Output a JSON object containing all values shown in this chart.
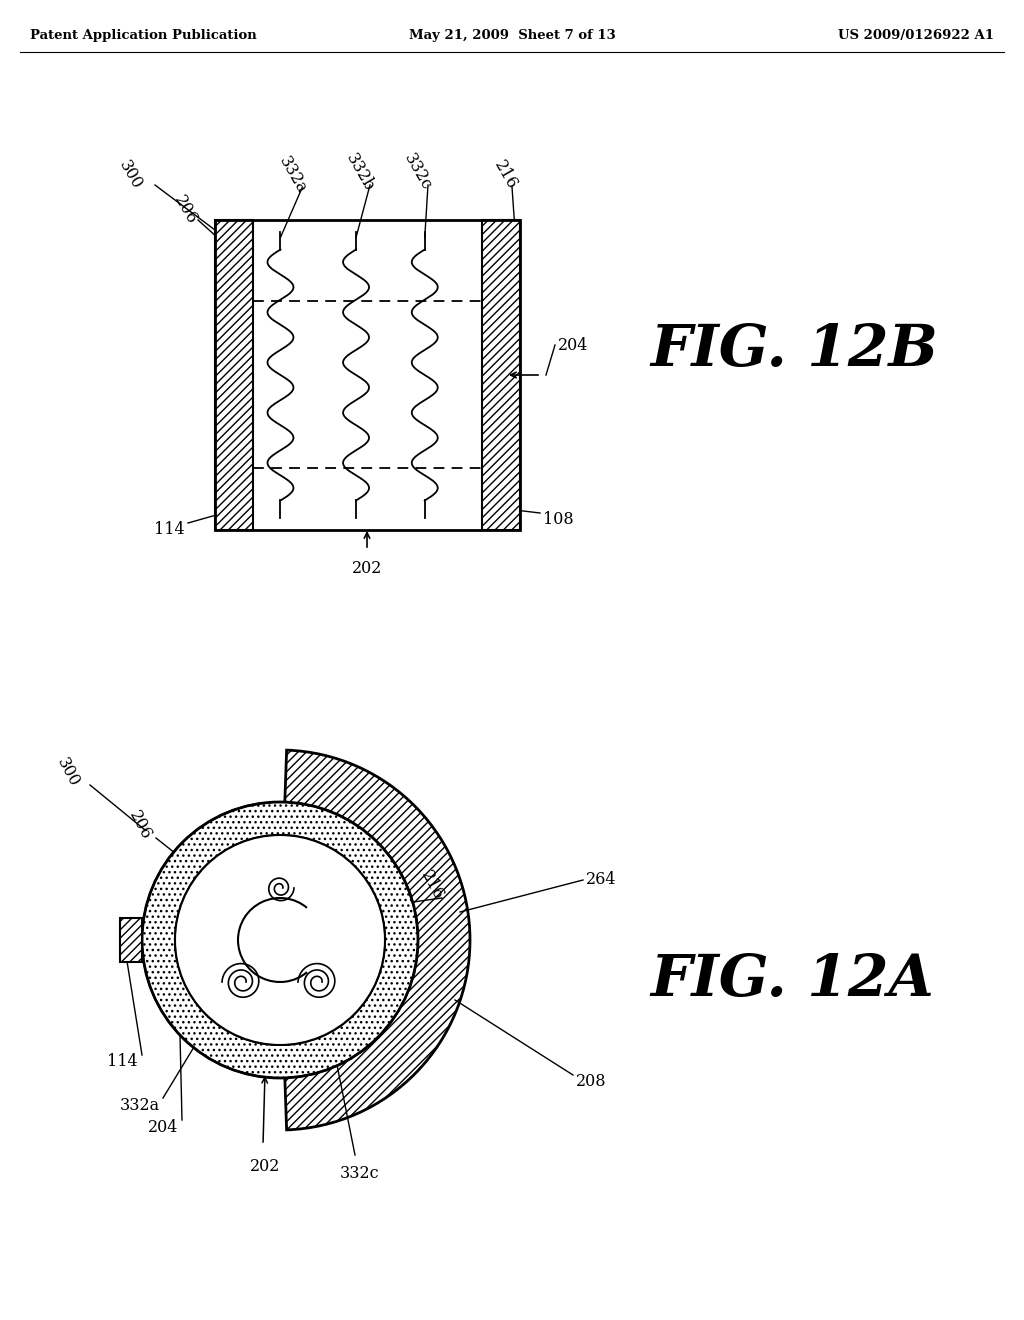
{
  "header_left": "Patent Application Publication",
  "header_center": "May 21, 2009  Sheet 7 of 13",
  "header_right": "US 2009/0126922 A1",
  "fig_12b_label": "FIG. 12B",
  "fig_12a_label": "FIG. 12A",
  "background": "#ffffff"
}
